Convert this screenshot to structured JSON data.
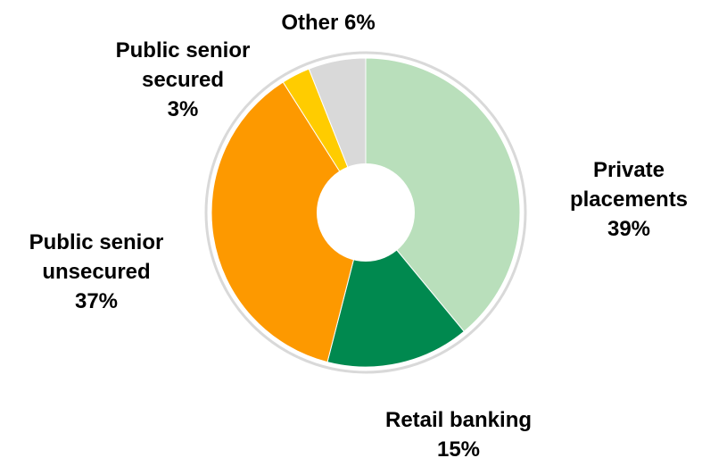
{
  "chart_data": {
    "type": "pie",
    "style": "donut",
    "title": "",
    "slices": [
      {
        "name": "Private placements",
        "label_lines": [
          "Private",
          "placements",
          "39%"
        ],
        "value": 39,
        "color": "#b9dfbb"
      },
      {
        "name": "Retail banking",
        "label_lines": [
          "Retail banking",
          "15%"
        ],
        "value": 15,
        "color": "#00894f"
      },
      {
        "name": "Public senior unsecured",
        "label_lines": [
          "Public senior",
          "unsecured",
          "37%"
        ],
        "value": 37,
        "color": "#fd9900"
      },
      {
        "name": "Public senior secured",
        "label_lines": [
          "Public senior",
          "secured",
          "3%"
        ],
        "value": 3,
        "color": "#ffcc00"
      },
      {
        "name": "Other",
        "label_lines": [
          "Other 6%"
        ],
        "value": 6,
        "color": "#d9d9d9"
      }
    ]
  }
}
